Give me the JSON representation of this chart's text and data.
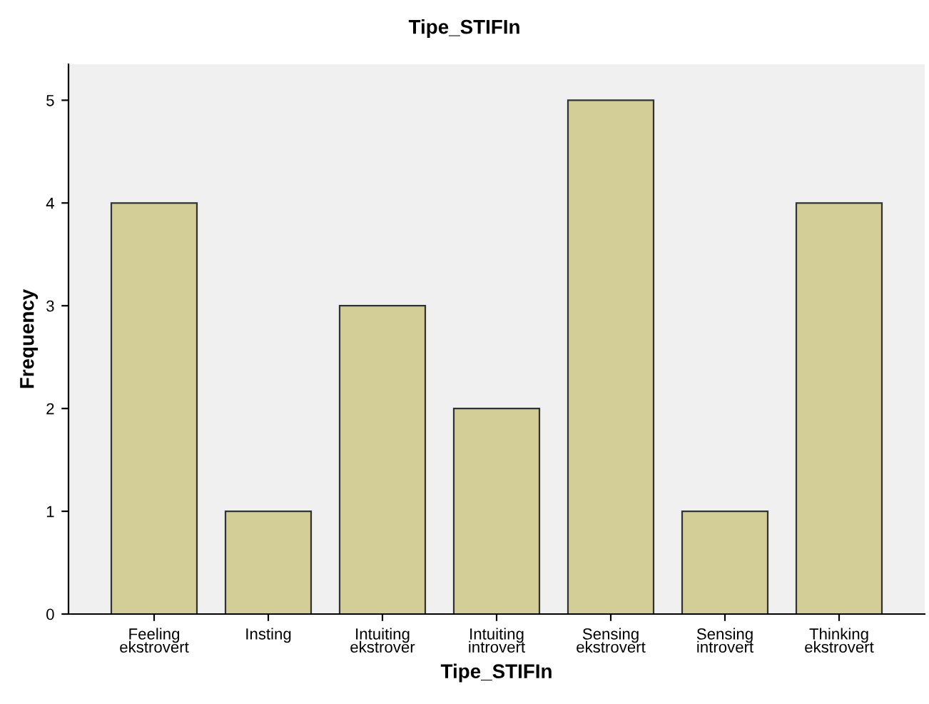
{
  "chart_data": {
    "type": "bar",
    "title": "Tipe_STIFIn",
    "xlabel": "Tipe_STIFIn",
    "ylabel": "Frequency",
    "categories": [
      "Feeling\nekstrovert",
      "Insting",
      "Intuiting\nekstrover",
      "Intuiting\nintrovert",
      "Sensing\nekstrovert",
      "Sensing\nintrovert",
      "Thinking\nekstrovert"
    ],
    "values": [
      4,
      1,
      3,
      2,
      5,
      1,
      4
    ],
    "color": "#d3ce97",
    "ylim": [
      0,
      5.35
    ],
    "yticks": [
      0,
      1,
      2,
      3,
      4,
      5
    ],
    "grid": false,
    "legend": false
  }
}
